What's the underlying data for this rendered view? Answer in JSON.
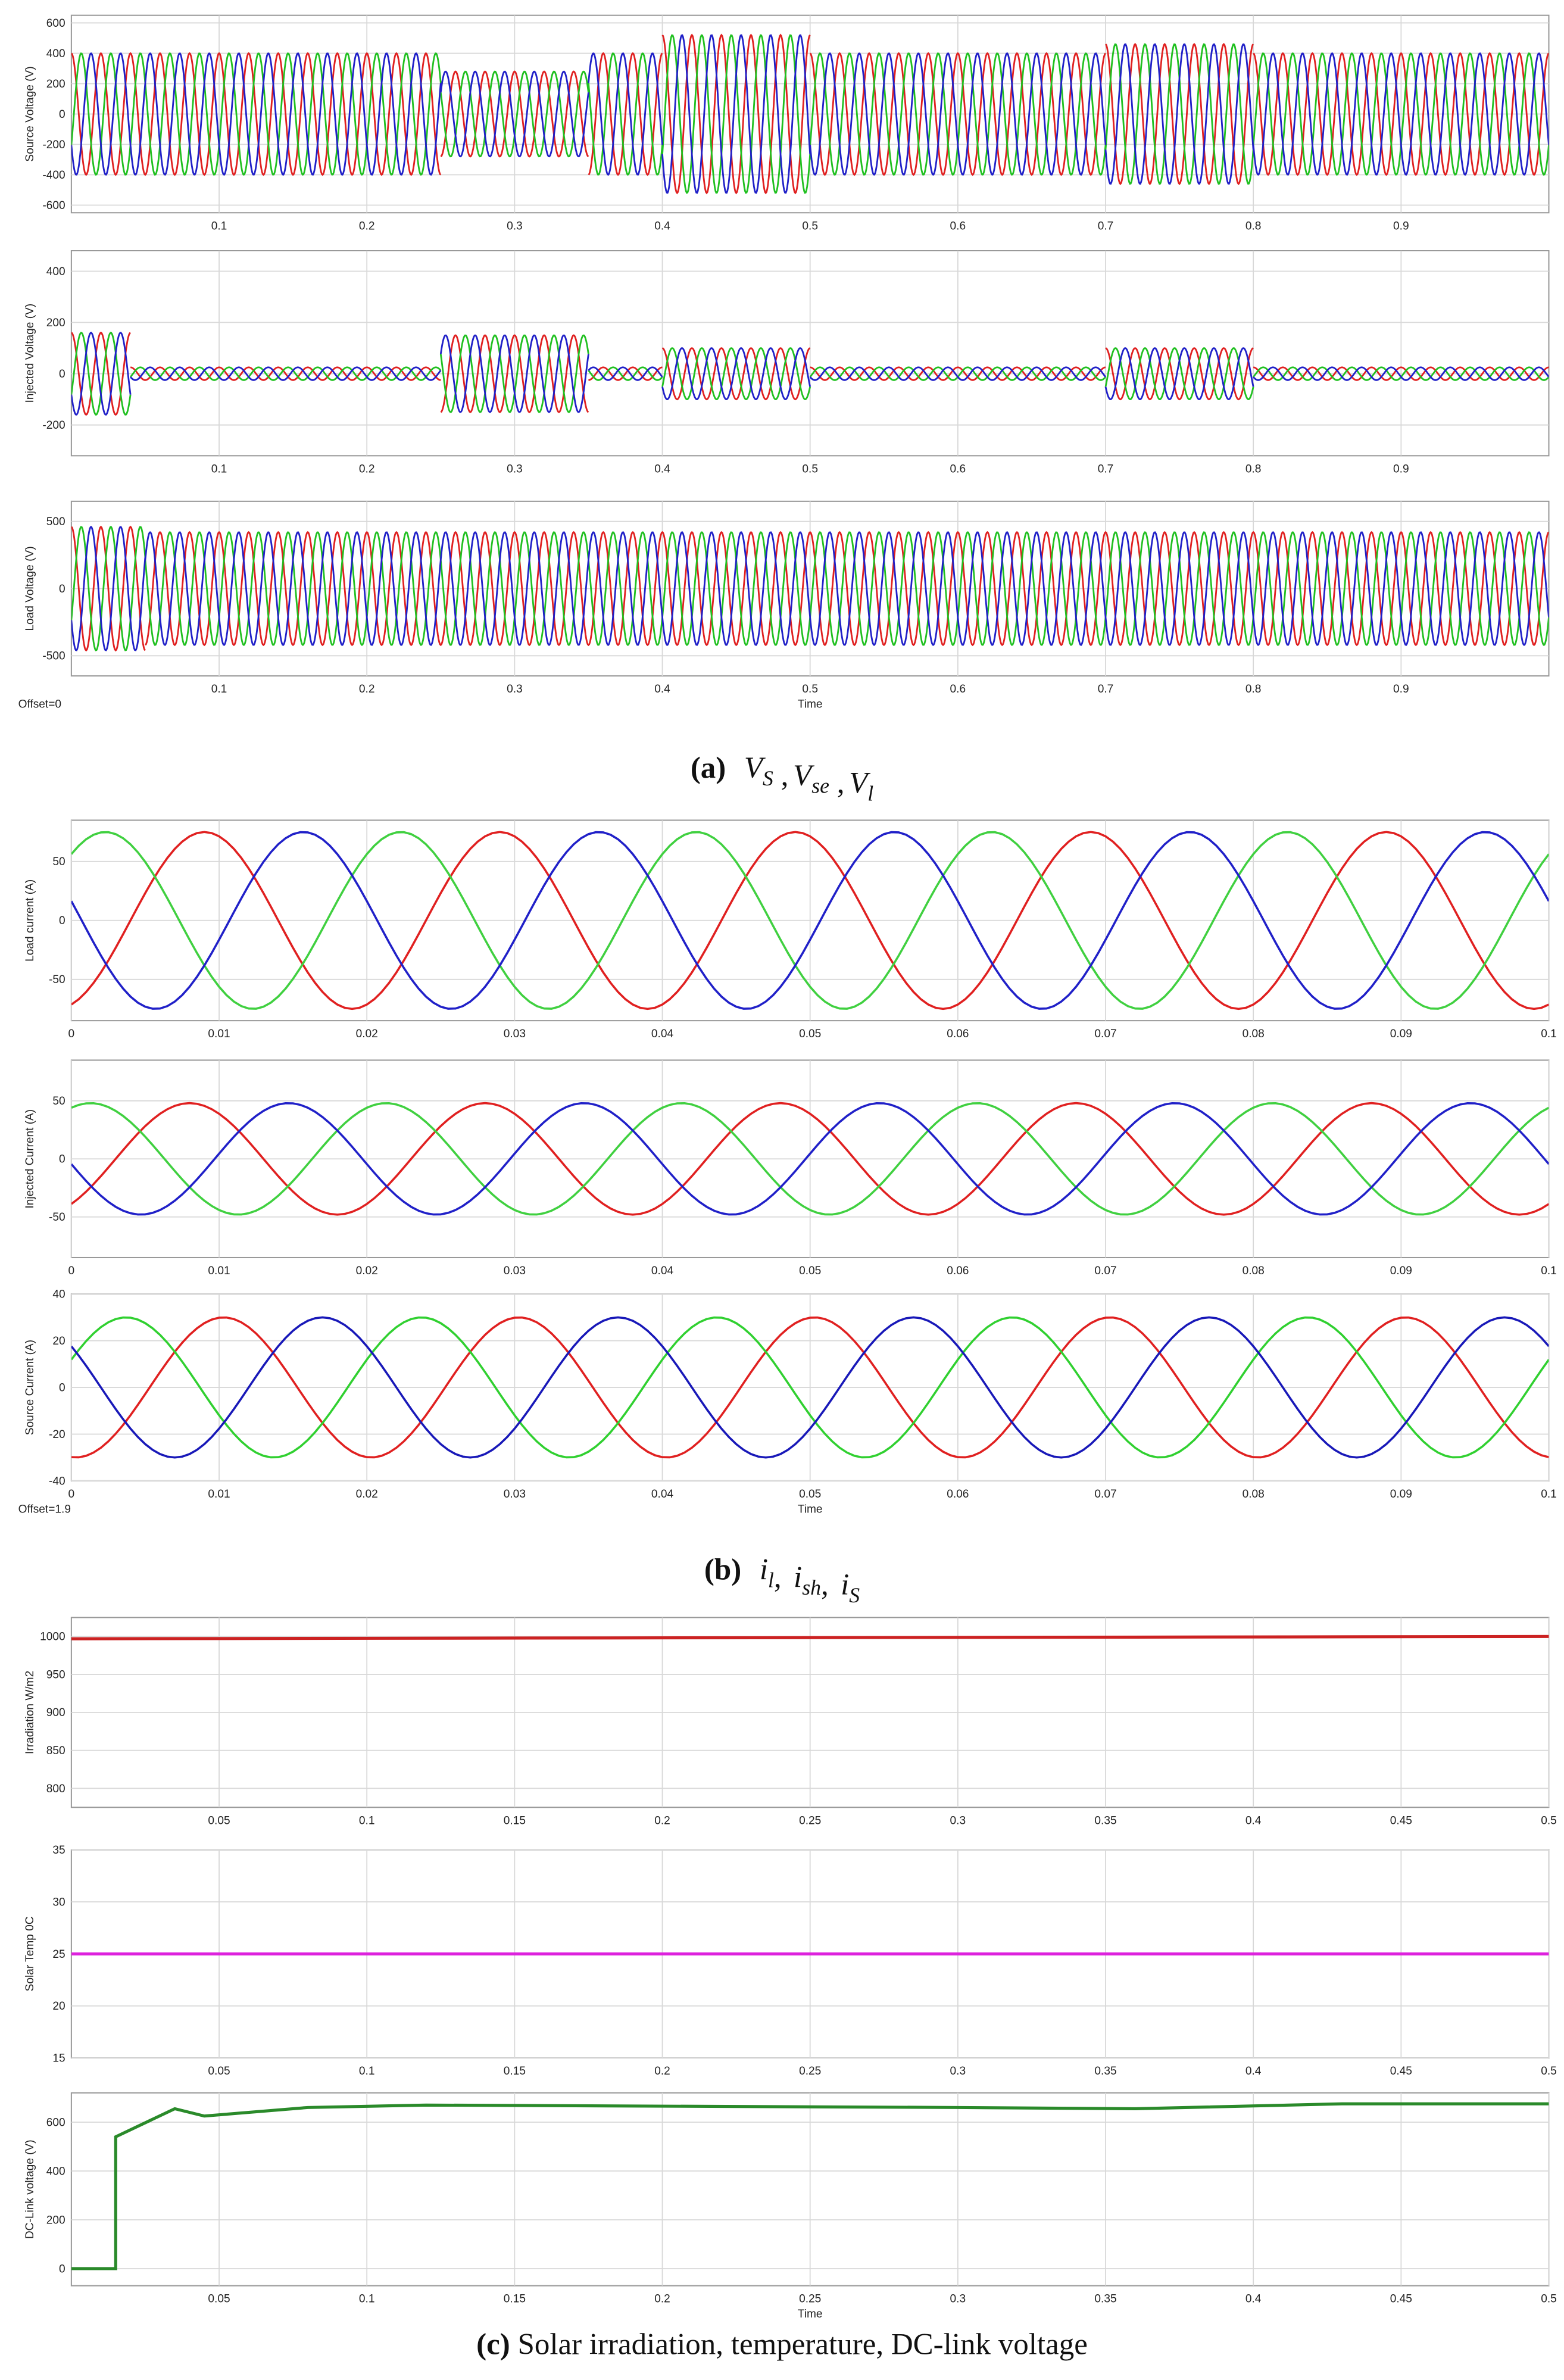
{
  "chart_data": [
    {
      "type": "waveform",
      "ylabel": "Source Voltage (V)",
      "xlim": [
        0,
        1
      ],
      "xticks": [
        0.1,
        0.2,
        0.3,
        0.4,
        0.5,
        0.6,
        0.7,
        0.8,
        0.9
      ],
      "ylim": [
        -650,
        650
      ],
      "yticks": [
        -600,
        -400,
        -200,
        0,
        200,
        400,
        600
      ],
      "grid": true,
      "frequency": 50,
      "segments": [
        {
          "start": 0,
          "end": 0.25,
          "amplitude": 400
        },
        {
          "start": 0.25,
          "end": 0.35,
          "amplitude": 280
        },
        {
          "start": 0.35,
          "end": 0.4,
          "amplitude": 400
        },
        {
          "start": 0.4,
          "end": 0.5,
          "amplitude": 520
        },
        {
          "start": 0.5,
          "end": 0.7,
          "amplitude": 400
        },
        {
          "start": 0.7,
          "end": 0.8,
          "amplitude": 460
        },
        {
          "start": 0.8,
          "end": 1,
          "amplitude": 400
        }
      ],
      "series": [
        {
          "color": "#e02020",
          "peak_time": 0.0
        },
        {
          "color": "#20c020",
          "peak_time": 0.0067
        },
        {
          "color": "#2020c8",
          "peak_time": 0.0133
        }
      ]
    },
    {
      "type": "waveform",
      "ylabel": "Injected Voltage (V)",
      "xlim": [
        0,
        1
      ],
      "xticks": [
        0.1,
        0.2,
        0.3,
        0.4,
        0.5,
        0.6,
        0.7,
        0.8,
        0.9
      ],
      "ylim": [
        -320,
        480
      ],
      "yticks": [
        -200,
        0,
        200,
        400
      ],
      "grid": true,
      "frequency": 50,
      "segments": [
        {
          "start": 0,
          "end": 0.04,
          "amplitude": 160
        },
        {
          "start": 0.04,
          "end": 0.25,
          "amplitude": 25
        },
        {
          "start": 0.25,
          "end": 0.35,
          "amplitude": 150
        },
        {
          "start": 0.35,
          "end": 0.4,
          "amplitude": 25
        },
        {
          "start": 0.4,
          "end": 0.5,
          "amplitude": 100
        },
        {
          "start": 0.5,
          "end": 0.7,
          "amplitude": 25
        },
        {
          "start": 0.7,
          "end": 0.8,
          "amplitude": 100
        },
        {
          "start": 0.8,
          "end": 1,
          "amplitude": 25
        }
      ],
      "series": [
        {
          "color": "#e02020",
          "peak_time": 0.0
        },
        {
          "color": "#20c020",
          "peak_time": 0.0067
        },
        {
          "color": "#2020c8",
          "peak_time": 0.0133
        }
      ]
    },
    {
      "type": "waveform",
      "ylabel": "Load Voltage (V)",
      "xlabel": "Time",
      "offset_label": "Offset=0",
      "xlim": [
        0,
        1
      ],
      "xticks": [
        0.1,
        0.2,
        0.3,
        0.4,
        0.5,
        0.6,
        0.7,
        0.8,
        0.9
      ],
      "ylim": [
        -650,
        650
      ],
      "yticks": [
        -500,
        0,
        500
      ],
      "grid": true,
      "frequency": 50,
      "segments": [
        {
          "start": 0,
          "end": 0.05,
          "amplitude": 460
        },
        {
          "start": 0.05,
          "end": 1,
          "amplitude": 420
        }
      ],
      "series": [
        {
          "color": "#e02020",
          "peak_time": 0.0
        },
        {
          "color": "#20c020",
          "peak_time": 0.0067
        },
        {
          "color": "#2020c8",
          "peak_time": 0.0133
        }
      ]
    },
    {
      "type": "waveform",
      "ylabel": "Load current (A)",
      "xlim": [
        0,
        0.1
      ],
      "xticks": [
        0,
        0.01,
        0.02,
        0.03,
        0.04,
        0.05,
        0.06,
        0.07,
        0.08,
        0.09,
        0.1
      ],
      "ylim": [
        -85,
        85
      ],
      "yticks": [
        -50,
        0,
        50
      ],
      "grid": true,
      "frequency": 50,
      "segments": [
        {
          "start": 0,
          "end": 0.1,
          "amplitude": 75
        }
      ],
      "series": [
        {
          "color": "#e02020",
          "peak_time": 0.009
        },
        {
          "color": "#40d040",
          "peak_time": 0.0023
        },
        {
          "color": "#2020c8",
          "peak_time": 0.0157
        }
      ]
    },
    {
      "type": "waveform",
      "ylabel": "Injected Current (A)",
      "xlim": [
        0,
        0.1
      ],
      "xticks": [
        0,
        0.01,
        0.02,
        0.03,
        0.04,
        0.05,
        0.06,
        0.07,
        0.08,
        0.09,
        0.1
      ],
      "ylim": [
        -85,
        85
      ],
      "yticks": [
        -50,
        0,
        50
      ],
      "grid": true,
      "frequency": 50,
      "segments": [
        {
          "start": 0,
          "end": 0.1,
          "amplitude": 48
        }
      ],
      "series": [
        {
          "color": "#e02020",
          "peak_time": 0.008
        },
        {
          "color": "#40d040",
          "peak_time": 0.0013
        },
        {
          "color": "#2020c8",
          "peak_time": 0.0147
        }
      ]
    },
    {
      "type": "waveform",
      "ylabel": "Source Current (A)",
      "xlabel": "Time",
      "offset_label": "Offset=1.9",
      "xlim": [
        0,
        0.1
      ],
      "xticks": [
        0,
        0.01,
        0.02,
        0.03,
        0.04,
        0.05,
        0.06,
        0.07,
        0.08,
        0.09,
        0.1
      ],
      "ylim": [
        -40,
        40
      ],
      "yticks": [
        -40,
        -20,
        0,
        20,
        40
      ],
      "grid": true,
      "frequency": 50,
      "segments": [
        {
          "start": 0,
          "end": 0.1,
          "amplitude": 30
        }
      ],
      "series": [
        {
          "color": "#e02020",
          "peak_time": 0.0103
        },
        {
          "color": "#30d030",
          "peak_time": 0.0037
        },
        {
          "color": "#1818b8",
          "peak_time": 0.017
        }
      ]
    },
    {
      "type": "line",
      "ylabel": "Irradiation W/m2",
      "xlim": [
        0,
        0.5
      ],
      "xticks": [
        0.05,
        0.1,
        0.15,
        0.2,
        0.25,
        0.3,
        0.35,
        0.4,
        0.45,
        0.5
      ],
      "ylim": [
        775,
        1025
      ],
      "yticks": [
        800,
        850,
        900,
        950,
        1000
      ],
      "grid": true,
      "series": [
        {
          "color": "#cc2222",
          "x": [
            0,
            0.5
          ],
          "values": [
            997,
            1000
          ]
        }
      ]
    },
    {
      "type": "line",
      "ylabel": "Solar Temp 0C",
      "xlim": [
        0,
        0.5
      ],
      "xticks": [
        0.05,
        0.1,
        0.15,
        0.2,
        0.25,
        0.3,
        0.35,
        0.4,
        0.45,
        0.5
      ],
      "ylim": [
        15,
        35
      ],
      "yticks": [
        15,
        20,
        25,
        30,
        35
      ],
      "grid": true,
      "series": [
        {
          "color": "#dd22dd",
          "x": [
            0,
            0.5
          ],
          "values": [
            25,
            25
          ]
        }
      ]
    },
    {
      "type": "line",
      "ylabel": "DC-Link voltage (V)",
      "xlabel": "Time",
      "xlim": [
        0,
        0.5
      ],
      "xticks": [
        0.05,
        0.1,
        0.15,
        0.2,
        0.25,
        0.3,
        0.35,
        0.4,
        0.45,
        0.5
      ],
      "ylim": [
        -70,
        720
      ],
      "yticks": [
        0,
        200,
        400,
        600
      ],
      "grid": true,
      "series": [
        {
          "color": "#2a8a2a",
          "x": [
            0,
            0.015,
            0.015,
            0.035,
            0.045,
            0.08,
            0.12,
            0.3,
            0.36,
            0.43,
            0.5
          ],
          "values": [
            0,
            0,
            540,
            655,
            625,
            660,
            670,
            660,
            655,
            675,
            675
          ]
        }
      ]
    }
  ],
  "captions": [
    {
      "tag": "(a)",
      "separator": " ,",
      "terms": [
        {
          "main": "V",
          "sub": "S"
        },
        {
          "main": "V",
          "sub": "se"
        },
        {
          "main": "V",
          "sub": "l"
        }
      ]
    },
    {
      "tag": "(b)",
      "separator": ",  ",
      "terms": [
        {
          "main": "i",
          "sub": "l"
        },
        {
          "main": "i",
          "sub": "sh"
        },
        {
          "main": "i",
          "sub": "S"
        }
      ]
    },
    {
      "tag": "(c)",
      "text": "Solar irradiation, temperature, DC-link voltage"
    }
  ]
}
